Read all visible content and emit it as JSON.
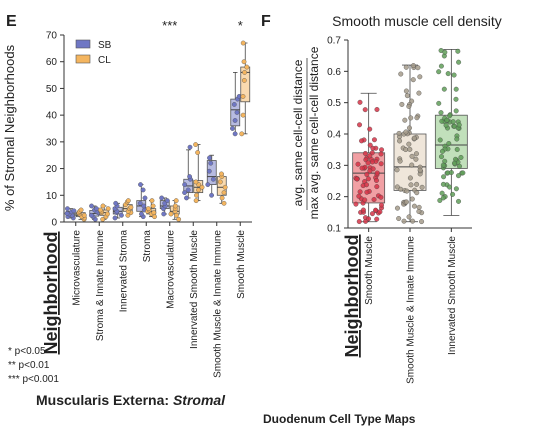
{
  "figure": {
    "caption": "Duodenum Cell Type Maps",
    "significance_legend": [
      "* p<0.05",
      "** p<0.01",
      "*** p<0.001"
    ]
  },
  "chart_data": [
    {
      "panel": "E",
      "type": "box",
      "title": "",
      "ylabel": "% of Stromal Neighborhoods",
      "xlabel": "Neighborhood",
      "subtitle_prefix": "Muscularis Externa: ",
      "subtitle_emph": "Stromal",
      "ylim": [
        0,
        70
      ],
      "yticks": [
        0,
        10,
        20,
        30,
        40,
        50,
        60,
        70
      ],
      "legend_position": "top-left",
      "categories": [
        "Microvasculature",
        "Stroma & Innate Immune",
        "Innervated Stroma",
        "Stroma",
        "Macrovasculature",
        "Innervated Smooth Muscle",
        "Smooth Muscle & Innate Immune",
        "Smooth Muscle"
      ],
      "annotations": [
        "",
        "",
        "",
        "",
        "***",
        "",
        "",
        "*"
      ],
      "series": [
        {
          "name": "SB",
          "color": "#6f77c4",
          "box": [
            [
              1.5,
              2.3,
              3.0,
              4.0,
              5.0
            ],
            [
              1.0,
              2.2,
              3.2,
              4.3,
              6.0
            ],
            [
              1.5,
              3.0,
              4.0,
              5.5,
              7.0
            ],
            [
              2.0,
              4.0,
              6.0,
              8.0,
              14.0
            ],
            [
              3.0,
              5.0,
              6.0,
              8.0,
              9.0
            ],
            [
              9.0,
              11.0,
              13.5,
              16.0,
              27.0
            ],
            [
              10.0,
              14.0,
              17.0,
              23.0,
              25.0
            ],
            [
              33.0,
              36.0,
              42.0,
              46.0,
              56.0
            ]
          ],
          "points": [
            [
              1.5,
              2.0,
              2.5,
              3.0,
              3.2,
              3.8,
              4.2,
              5.0
            ],
            [
              1.0,
              2.0,
              2.5,
              3.5,
              4.0,
              4.5,
              5.0,
              6.0
            ],
            [
              1.5,
              2.5,
              3.5,
              4.0,
              5.0,
              6.0,
              7.0
            ],
            [
              2.0,
              3.0,
              4.5,
              6.0,
              7.0,
              9.0,
              12.0,
              14.0
            ],
            [
              3.0,
              5.0,
              6.0,
              7.0,
              8.0,
              9.0
            ],
            [
              9.0,
              11.0,
              12.0,
              14.0,
              16.0,
              17.0,
              28.0
            ],
            [
              10.0,
              14.0,
              16.0,
              19.0,
              22.0,
              24.0
            ],
            [
              33.0,
              35.0,
              38.0,
              41.0,
              44.0,
              46.0,
              47.0
            ]
          ]
        },
        {
          "name": "CL",
          "color": "#f4b55f",
          "box": [
            [
              1.0,
              2.0,
              2.5,
              3.5,
              4.5
            ],
            [
              1.0,
              2.5,
              3.5,
              4.5,
              6.0
            ],
            [
              2.5,
              4.0,
              5.0,
              6.5,
              8.0
            ],
            [
              2.0,
              3.0,
              4.0,
              5.0,
              8.0
            ],
            [
              1.0,
              3.0,
              4.0,
              6.0,
              8.0
            ],
            [
              8.0,
              11.0,
              13.0,
              15.5,
              29.0
            ],
            [
              7.0,
              10.0,
              13.0,
              17.0,
              18.0
            ],
            [
              33.0,
              45.0,
              56.0,
              58.0,
              67.0
            ]
          ],
          "points": [
            [
              1.0,
              1.5,
              2.0,
              2.5,
              3.0,
              3.5,
              4.0,
              4.5
            ],
            [
              1.0,
              2.0,
              3.0,
              3.5,
              4.0,
              4.5,
              5.0,
              6.0
            ],
            [
              2.5,
              3.5,
              4.0,
              5.0,
              5.5,
              6.5,
              7.5,
              8.0
            ],
            [
              2.0,
              3.0,
              3.5,
              4.0,
              4.5,
              5.0,
              6.0,
              8.0
            ],
            [
              1.0,
              2.5,
              3.0,
              4.0,
              5.0,
              6.0,
              8.0
            ],
            [
              8.0,
              10.0,
              12.0,
              13.0,
              14.0,
              15.0,
              26.0,
              29.0
            ],
            [
              7.0,
              9.0,
              11.0,
              13.0,
              15.0,
              17.0,
              18.0
            ],
            [
              33.0,
              40.0,
              47.0,
              53.0,
              56.0,
              58.0,
              60.0,
              67.0
            ]
          ]
        }
      ]
    },
    {
      "panel": "F",
      "type": "box",
      "title": "Smooth muscle cell density",
      "ylabel_line1": "avg. same cell-cell distance",
      "ylabel_line2": "max avg. same cell-cell distance",
      "xlabel": "Neighborhood",
      "ylim": [
        0.1,
        0.7
      ],
      "yticks": [
        0.1,
        0.2,
        0.3,
        0.4,
        0.5,
        0.6,
        0.7
      ],
      "categories": [
        "Smooth Muscle",
        "Smooth Muscle & Innate Immune",
        "Innervated Smooth Muscle"
      ],
      "colors": [
        "#ef8f94",
        "#ece2d3",
        "#b6dbaf"
      ],
      "point_colors": [
        "#d63246",
        "#a59b8b",
        "#5f9e58"
      ],
      "box": [
        [
          0.12,
          0.18,
          0.275,
          0.34,
          0.53
        ],
        [
          0.12,
          0.22,
          0.295,
          0.4,
          0.62
        ],
        [
          0.14,
          0.29,
          0.365,
          0.46,
          0.67
        ]
      ]
    }
  ]
}
